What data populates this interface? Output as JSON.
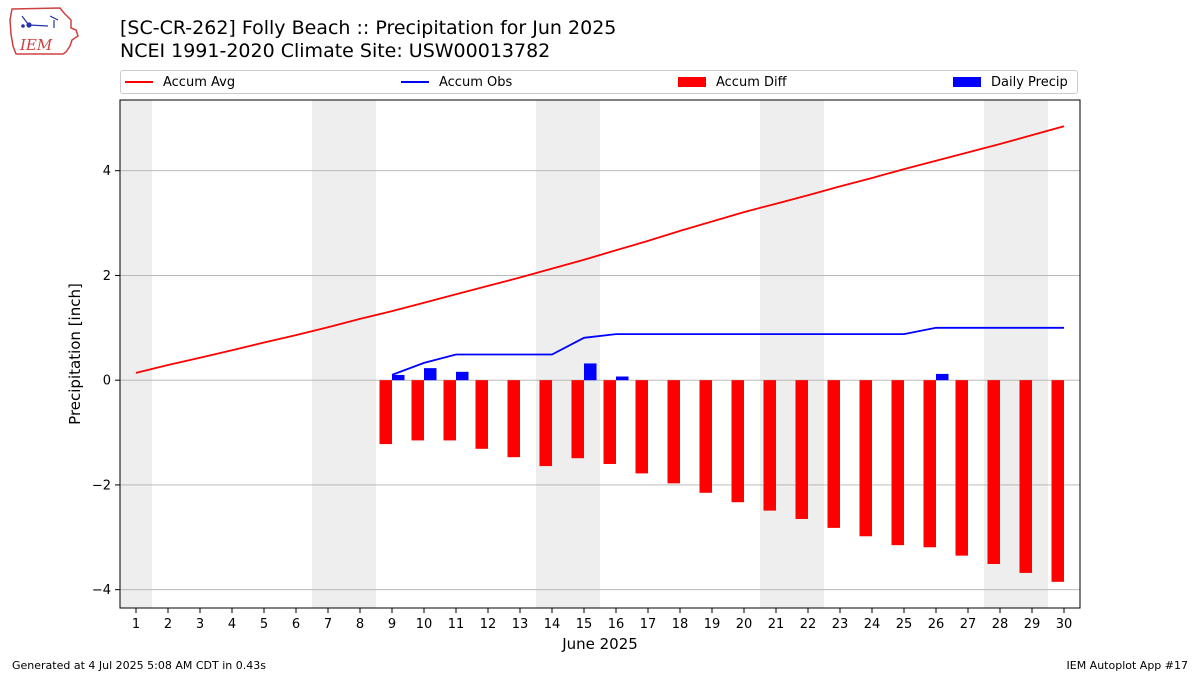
{
  "title_line1": "[SC-CR-262] Folly Beach :: Precipitation for Jun 2025",
  "title_line2": "NCEI 1991-2020 Climate Site: USW00013782",
  "logo_text": "IEM",
  "footer_left": "Generated at 4 Jul 2025 5:08 AM CDT in 0.43s",
  "footer_right": "IEM Autoplot App #17",
  "colors": {
    "accum_avg": "#ff0000",
    "accum_obs": "#0000ff",
    "accum_diff": "#ff0000",
    "daily_precip": "#0000ff",
    "weekend_shade": "#eeeeee",
    "grid": "#b0b0b0"
  },
  "chart_data": {
    "type": "bar",
    "xlabel": "June 2025",
    "ylabel": "Precipitation [inch]",
    "ylim": [
      -4.35,
      5.35
    ],
    "xlim": [
      0.5,
      30.5
    ],
    "yticks": [
      -4,
      -2,
      0,
      2,
      4
    ],
    "ytick_labels": [
      "−4",
      "−2",
      "0",
      "2",
      "4"
    ],
    "x": [
      1,
      2,
      3,
      4,
      5,
      6,
      7,
      8,
      9,
      10,
      11,
      12,
      13,
      14,
      15,
      16,
      17,
      18,
      19,
      20,
      21,
      22,
      23,
      24,
      25,
      26,
      27,
      28,
      29,
      30
    ],
    "xtick_labels": [
      "1",
      "2",
      "3",
      "4",
      "5",
      "6",
      "7",
      "8",
      "9",
      "10",
      "11",
      "12",
      "13",
      "14",
      "15",
      "16",
      "17",
      "18",
      "19",
      "20",
      "21",
      "22",
      "23",
      "24",
      "25",
      "26",
      "27",
      "28",
      "29",
      "30"
    ],
    "grid": "horizontal",
    "legend_position": "top",
    "shaded_days": [
      [
        0.5,
        1.5
      ],
      [
        6.5,
        8.5
      ],
      [
        13.5,
        15.5
      ],
      [
        20.5,
        22.5
      ],
      [
        27.5,
        29.5
      ]
    ],
    "series": [
      {
        "name": "Accum Avg",
        "type": "line",
        "x": [
          1,
          2,
          3,
          4,
          5,
          6,
          7,
          8,
          9,
          10,
          11,
          12,
          13,
          14,
          15,
          16,
          17,
          18,
          19,
          20,
          21,
          22,
          23,
          24,
          25,
          26,
          27,
          28,
          29,
          30
        ],
        "values": [
          0.14,
          0.29,
          0.43,
          0.57,
          0.72,
          0.86,
          1.01,
          1.17,
          1.32,
          1.48,
          1.64,
          1.8,
          1.96,
          2.13,
          2.3,
          2.48,
          2.66,
          2.85,
          3.03,
          3.21,
          3.37,
          3.53,
          3.7,
          3.86,
          4.03,
          4.19,
          4.35,
          4.51,
          4.68,
          4.85
        ]
      },
      {
        "name": "Accum Obs",
        "type": "line",
        "x": [
          9,
          10,
          11,
          12,
          13,
          14,
          15,
          16,
          17,
          18,
          19,
          20,
          21,
          22,
          23,
          24,
          25,
          26,
          27,
          28,
          29,
          30
        ],
        "values": [
          0.1,
          0.33,
          0.49,
          0.49,
          0.49,
          0.49,
          0.81,
          0.88,
          0.88,
          0.88,
          0.88,
          0.88,
          0.88,
          0.88,
          0.88,
          0.88,
          0.88,
          1.0,
          1.0,
          1.0,
          1.0,
          1.0
        ]
      },
      {
        "name": "Accum Diff",
        "type": "bar",
        "x": [
          9,
          10,
          11,
          12,
          13,
          14,
          15,
          16,
          17,
          18,
          19,
          20,
          21,
          22,
          23,
          24,
          25,
          26,
          27,
          28,
          29,
          30
        ],
        "values": [
          -1.22,
          -1.15,
          -1.15,
          -1.31,
          -1.47,
          -1.64,
          -1.49,
          -1.6,
          -1.78,
          -1.97,
          -2.15,
          -2.33,
          -2.49,
          -2.65,
          -2.82,
          -2.98,
          -3.15,
          -3.19,
          -3.35,
          -3.51,
          -3.68,
          -3.85
        ]
      },
      {
        "name": "Daily Precip",
        "type": "bar",
        "x": [
          9,
          10,
          11,
          15,
          16,
          26
        ],
        "values": [
          0.1,
          0.23,
          0.16,
          0.32,
          0.07,
          0.12
        ]
      }
    ]
  }
}
